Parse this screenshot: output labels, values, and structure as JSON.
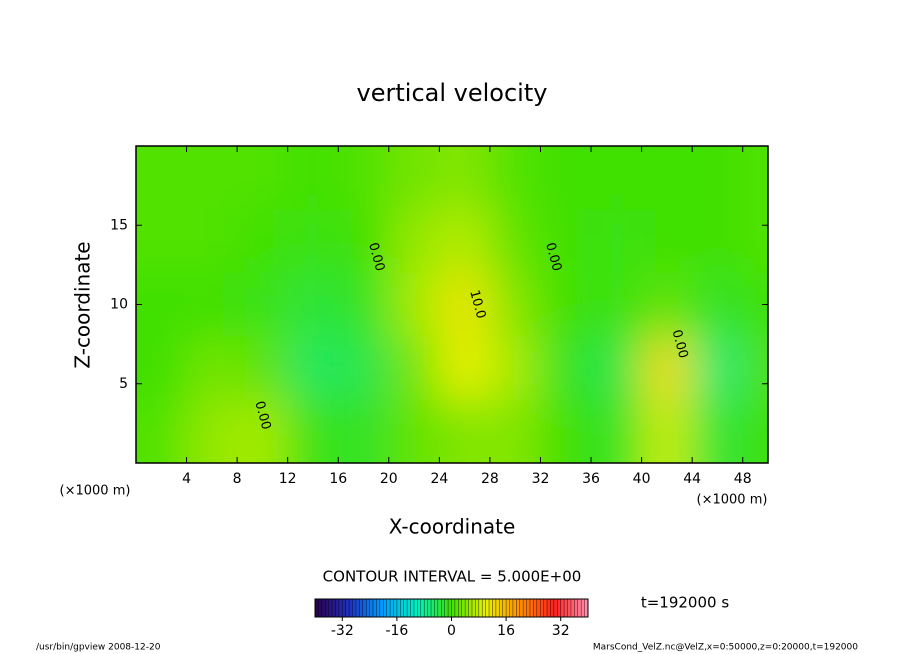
{
  "chart_data": {
    "type": "heatmap",
    "title": "vertical velocity",
    "x_label": "X-coordinate",
    "y_label": "Z-coordinate",
    "x_unit": "(×1000 m)",
    "y_unit": "(×1000 m)",
    "x": [
      2,
      6,
      10,
      14,
      18,
      22,
      26,
      30,
      34,
      38,
      42,
      46,
      50
    ],
    "y": [
      2,
      6,
      10,
      14,
      18
    ],
    "values": [
      [
        1,
        5,
        6,
        -1,
        -2,
        2,
        4,
        4,
        0,
        -2,
        8,
        -3,
        0
      ],
      [
        0,
        3,
        2,
        -5,
        -4,
        3,
        10,
        6,
        -2,
        -4,
        12,
        -6,
        1
      ],
      [
        0,
        0,
        -1,
        -3,
        -2,
        6,
        11,
        4,
        0,
        -1,
        2,
        -2,
        0
      ],
      [
        1,
        1,
        0,
        -1,
        0,
        5,
        7,
        2,
        0,
        -1,
        0,
        0,
        1
      ],
      [
        1,
        1,
        1,
        0,
        1,
        3,
        4,
        1,
        0,
        0,
        0,
        0,
        1
      ]
    ],
    "xlim": [
      0,
      50
    ],
    "ylim": [
      0,
      20
    ],
    "xticks": [
      4,
      8,
      12,
      16,
      20,
      24,
      28,
      32,
      36,
      40,
      44,
      48
    ],
    "yticks": [
      5,
      10,
      15
    ],
    "contour_labels": [
      {
        "text": "0.00",
        "x": 19,
        "y": 13
      },
      {
        "text": "10.0",
        "x": 27,
        "y": 10
      },
      {
        "text": "0.00",
        "x": 33,
        "y": 13
      },
      {
        "text": "0.00",
        "x": 10,
        "y": 3
      },
      {
        "text": "0.00",
        "x": 43,
        "y": 7.5
      }
    ],
    "contour_interval": "CONTOUR INTERVAL = 5.000E+00",
    "time_label": "t=192000 s",
    "colormap": [
      "#2a004a",
      "#2030c0",
      "#00a0ff",
      "#00f0c0",
      "#40e000",
      "#e8f000",
      "#ff9000",
      "#ff2020",
      "#ff90b0"
    ],
    "clim": [
      -40,
      40
    ],
    "cticks": [
      -32,
      -16,
      0,
      16,
      32
    ],
    "footer_left": "/usr/bin/gpview  2008-12-20",
    "footer_right": "MarsCond_VelZ.nc@VelZ,x=0:50000,z=0:20000,t=192000"
  }
}
